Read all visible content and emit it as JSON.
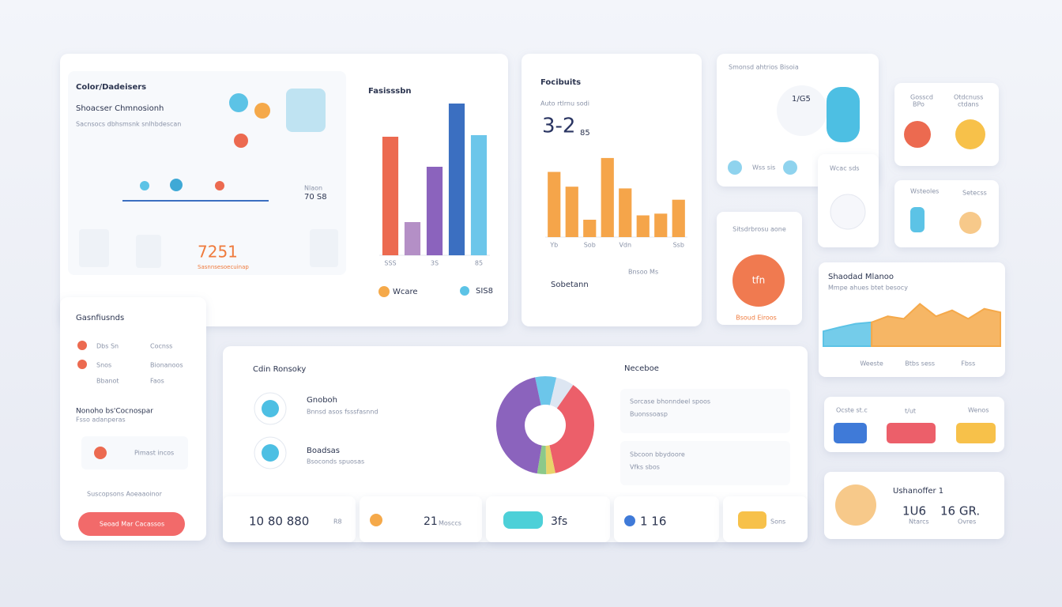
{
  "chart_data": [
    {
      "type": "bar",
      "title": "Fasisssbn",
      "categories": [
        "SSS",
        null,
        "3S",
        null,
        "85"
      ],
      "values": [
        75,
        21,
        56,
        96,
        76
      ],
      "colors": [
        "#ec6a50",
        "#b48fc6",
        "#8b63bd",
        "#3b6fc1",
        "#6cc6ea"
      ],
      "ylim": [
        0,
        100
      ]
    },
    {
      "type": "bar",
      "title": "Focibuits",
      "categories": [
        "Yb",
        null,
        "Sob",
        null,
        "Vdn",
        null,
        null,
        "Ssb"
      ],
      "values": [
        75,
        58,
        20,
        91,
        56,
        25,
        27,
        43
      ],
      "color": "#f5a54a",
      "ylim": [
        0,
        100
      ]
    },
    {
      "type": "pie",
      "title": "Neceboe",
      "values": [
        7,
        6,
        37,
        3,
        3,
        44
      ],
      "colors": [
        "#6cc6ea",
        "#dde6f2",
        "#ec5f6a",
        "#e9d36a",
        "#8cc98a",
        "#8b63bd"
      ]
    },
    {
      "type": "area",
      "title": "Shaodad Mlanoo",
      "subtitle": "Mmpe ahues btet besocy",
      "categories": [
        null,
        null,
        null,
        "Weeste",
        null,
        null,
        "Btbs sess",
        null,
        null,
        "Fbss",
        null,
        null
      ],
      "ylim": [
        0,
        100
      ],
      "series": [
        {
          "color": "#5cc3e6",
          "values": [
            30,
            38,
            45,
            48,
            null,
            null,
            null,
            null,
            null,
            null,
            null,
            null
          ]
        },
        {
          "color": "#f5a94a",
          "values": [
            null,
            null,
            null,
            48,
            60,
            55,
            85,
            60,
            72,
            55,
            75,
            68
          ]
        }
      ]
    }
  ],
  "overview": {
    "title": "Color/Dadeisers",
    "subtitle": "Shoacser Chmnosionh",
    "caption": "Sacnsocs dbhsmsnk snlhbdescan",
    "metric_label": "Nlaon",
    "metric": "70 S8",
    "stat": "7251",
    "stat_caption": "Sasnnsesoecuinap",
    "legend": [
      "Wcare",
      "SIS8"
    ]
  },
  "focus": {
    "caption": "Auto rtlrnu sodi",
    "metric": "3-2",
    "metric_unit": "85",
    "labels": [
      "Sobetann",
      "Bnsoo Ms"
    ]
  },
  "status": {
    "title": "Smonsd ahtrios Bisoia",
    "metric": "1/G5",
    "label": "Wss sis"
  },
  "side_small": {
    "label": "Wcac sds"
  },
  "tiles": [
    {
      "top": "Gosscd",
      "bottom": "BPo"
    },
    {
      "top": "Otdcnuss",
      "bottom": "ctdans"
    },
    {
      "top": "Wsteoles",
      "bottom": "Setecss"
    }
  ],
  "gauge": {
    "title": "Sitsdrbrosu aone",
    "value": "tfn",
    "caption": "Bsoud Eiroos"
  },
  "pills": [
    "Ocste st.c",
    "t/ut",
    "Wenos"
  ],
  "summary": {
    "title": "Ushanoffer 1",
    "values": [
      "1U6",
      "16 GR."
    ],
    "captions": [
      "Ntarcs",
      "Ovres"
    ]
  },
  "left_panel": {
    "title": "Gasnfiusnds",
    "rows": [
      [
        "Dbs Sn",
        "Cocnss"
      ],
      [
        "Snos",
        "Bionanoos"
      ],
      [
        "Bbanot",
        "Faos"
      ]
    ],
    "heading": "Nonoho bs'Cocnospar",
    "subheading": "Fsso adanperas",
    "item": "Pimast incos",
    "note": "Suscopsons Aoeaaoinor",
    "button": "Seoad Mar Cacassos"
  },
  "main_panel": {
    "title": "Cdin Ronsoky",
    "items": [
      {
        "title": "Gnoboh",
        "text": "Bnnsd asos fsssfasnnd"
      },
      {
        "title": "Boadsas",
        "text": "Bsoconds spuosas"
      }
    ],
    "side_items": [
      {
        "title": "Sorcase bhonndeel spoos",
        "text": "Buonssoasp"
      },
      {
        "title": "Sbcoon bbydoore",
        "text": "Vfks sbos"
      }
    ],
    "footer": [
      "10 80 880",
      "R8",
      "21",
      "Mosccs",
      "3fs",
      "1 16",
      "Sons"
    ]
  }
}
